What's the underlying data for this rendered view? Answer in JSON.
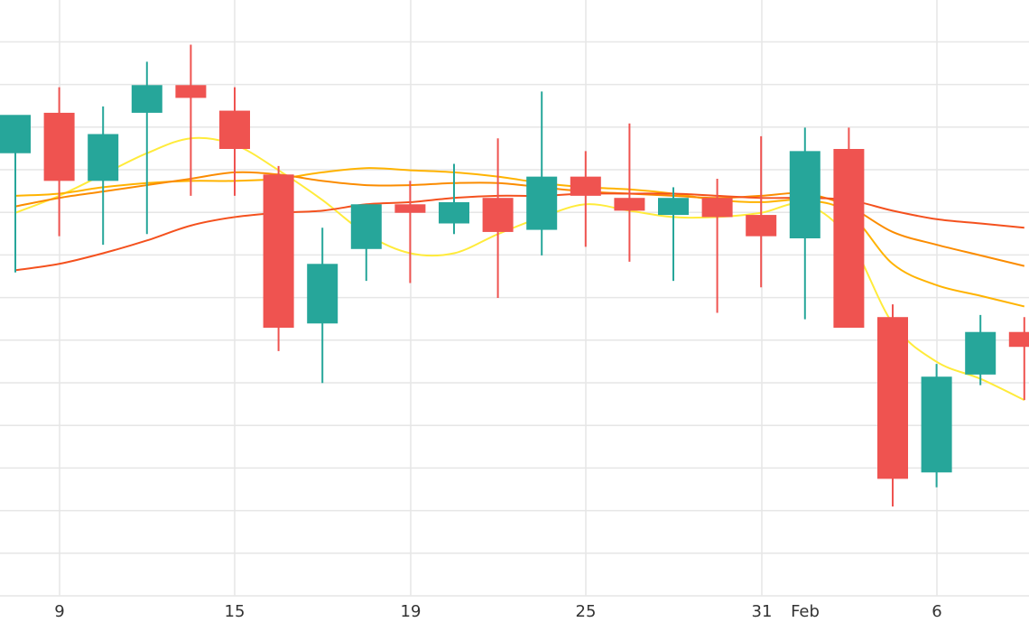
{
  "chart_data": {
    "type": "candlestick",
    "x_tick_labels": [
      "9",
      "15",
      "19",
      "25",
      "31",
      "Feb",
      "6"
    ],
    "grid": true,
    "colors": {
      "up": "#26a69a",
      "down": "#ef5350",
      "ma_fast": "#ffeb3b",
      "ma_2": "#ffb300",
      "ma_3": "#fb8c00",
      "ma_slow": "#f4511e",
      "grid": "#e6e6e6"
    },
    "y_range": [
      0,
      14
    ],
    "candles": [
      {
        "open": 10.4,
        "high": 11.2,
        "low": 7.6,
        "close": 11.3
      },
      {
        "open": 11.35,
        "high": 11.95,
        "low": 8.45,
        "close": 9.75
      },
      {
        "open": 9.75,
        "high": 11.5,
        "low": 8.25,
        "close": 10.85
      },
      {
        "open": 11.35,
        "high": 12.55,
        "low": 8.5,
        "close": 12.0
      },
      {
        "open": 12.0,
        "high": 12.95,
        "low": 9.4,
        "close": 11.7
      },
      {
        "open": 11.4,
        "high": 11.95,
        "low": 9.4,
        "close": 10.5
      },
      {
        "open": 9.9,
        "high": 10.1,
        "low": 5.75,
        "close": 6.3
      },
      {
        "open": 6.4,
        "high": 8.65,
        "low": 5.0,
        "close": 7.8
      },
      {
        "open": 8.15,
        "high": 9.2,
        "low": 7.4,
        "close": 9.2
      },
      {
        "open": 9.2,
        "high": 9.75,
        "low": 7.35,
        "close": 9.0
      },
      {
        "open": 8.75,
        "high": 10.15,
        "low": 8.5,
        "close": 9.25
      },
      {
        "open": 9.35,
        "high": 10.75,
        "low": 7.0,
        "close": 8.55
      },
      {
        "open": 8.6,
        "high": 11.85,
        "low": 8.0,
        "close": 9.85
      },
      {
        "open": 9.85,
        "high": 10.45,
        "low": 8.2,
        "close": 9.4
      },
      {
        "open": 9.35,
        "high": 11.1,
        "low": 7.85,
        "close": 9.05
      },
      {
        "open": 8.95,
        "high": 9.6,
        "low": 7.4,
        "close": 9.35
      },
      {
        "open": 9.35,
        "high": 9.8,
        "low": 6.65,
        "close": 8.9
      },
      {
        "open": 8.95,
        "high": 10.8,
        "low": 7.25,
        "close": 8.45
      },
      {
        "open": 8.4,
        "high": 11.0,
        "low": 6.5,
        "close": 10.45
      },
      {
        "open": 10.5,
        "high": 11.0,
        "low": 6.35,
        "close": 6.3
      },
      {
        "open": 6.55,
        "high": 6.85,
        "low": 2.1,
        "close": 2.75
      },
      {
        "open": 2.9,
        "high": 5.45,
        "low": 2.55,
        "close": 5.15
      },
      {
        "open": 5.2,
        "high": 6.6,
        "low": 4.95,
        "close": 6.2
      },
      {
        "open": 6.2,
        "high": 6.55,
        "low": 4.6,
        "close": 5.85
      }
    ],
    "moving_averages": [
      {
        "color_key": "ma_fast",
        "values": [
          9.0,
          9.4,
          9.9,
          10.4,
          10.75,
          10.6,
          10.0,
          9.3,
          8.5,
          8.05,
          8.05,
          8.5,
          8.9,
          9.2,
          9.05,
          8.9,
          8.9,
          9.0,
          9.2,
          8.4,
          6.4,
          5.5,
          5.1,
          4.6
        ]
      },
      {
        "color_key": "ma_2",
        "values": [
          9.4,
          9.45,
          9.6,
          9.7,
          9.75,
          9.75,
          9.8,
          9.95,
          10.05,
          10.0,
          9.95,
          9.85,
          9.7,
          9.6,
          9.55,
          9.45,
          9.3,
          9.25,
          9.3,
          9.0,
          7.8,
          7.3,
          7.05,
          6.8
        ]
      },
      {
        "color_key": "ma_3",
        "values": [
          9.15,
          9.35,
          9.5,
          9.65,
          9.8,
          9.95,
          9.9,
          9.75,
          9.65,
          9.65,
          9.7,
          9.7,
          9.6,
          9.5,
          9.45,
          9.4,
          9.35,
          9.4,
          9.45,
          9.15,
          8.55,
          8.25,
          8.0,
          7.75
        ]
      },
      {
        "color_key": "ma_slow",
        "values": [
          7.65,
          7.8,
          8.05,
          8.35,
          8.7,
          8.9,
          9.0,
          9.05,
          9.2,
          9.25,
          9.35,
          9.4,
          9.4,
          9.45,
          9.45,
          9.45,
          9.4,
          9.35,
          9.35,
          9.3,
          9.05,
          8.85,
          8.75,
          8.65
        ]
      }
    ]
  }
}
